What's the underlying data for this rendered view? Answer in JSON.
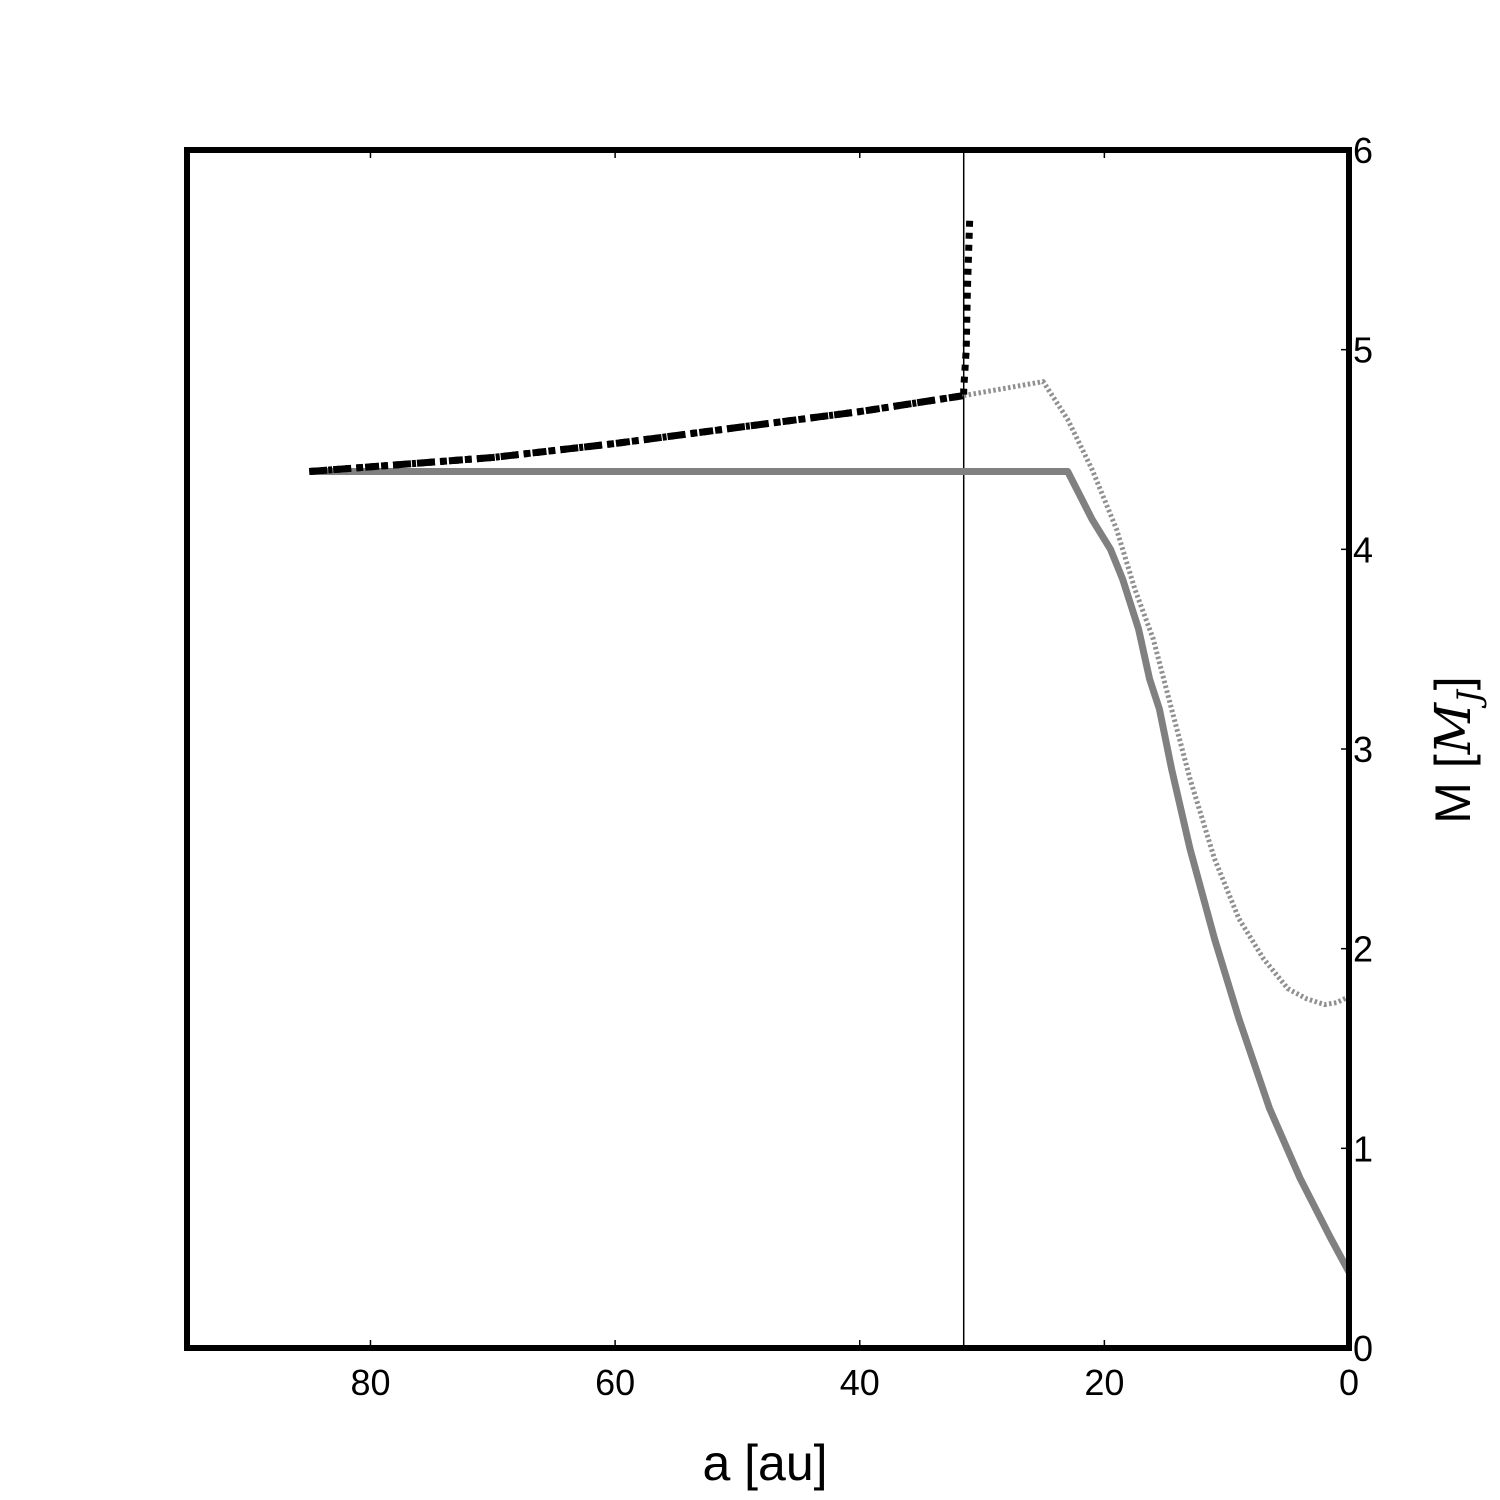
{
  "chart_data": {
    "type": "line",
    "title": "",
    "xlabel": "a [au]",
    "ylabel": "M [",
    "ylabel_symbol": "M",
    "ylabel_subscript": "J",
    "ylabel_close": "]",
    "xlim": [
      95,
      0
    ],
    "ylim": [
      0,
      6
    ],
    "x_ticks": [
      80,
      60,
      40,
      20,
      0
    ],
    "x_tick_labels": [
      "80",
      "60",
      "40",
      "20",
      "0"
    ],
    "y_ticks": [
      0,
      1,
      2,
      3,
      4,
      5,
      6
    ],
    "y_tick_labels": [
      "0",
      "1",
      "2",
      "3",
      "4",
      "5",
      "6"
    ],
    "y_axis_side": "right",
    "grid": false,
    "vline_x": 31.5,
    "series": [
      {
        "style": "solid",
        "color": "#808080",
        "points": [
          [
            85,
            4.39
          ],
          [
            23,
            4.39
          ],
          [
            22,
            4.27
          ],
          [
            21,
            4.15
          ],
          [
            19.5,
            4.0
          ],
          [
            18.5,
            3.85
          ],
          [
            17.2,
            3.6
          ],
          [
            16.3,
            3.35
          ],
          [
            15.5,
            3.2
          ],
          [
            14.5,
            2.9
          ],
          [
            13,
            2.5
          ],
          [
            11,
            2.05
          ],
          [
            9,
            1.65
          ],
          [
            6.5,
            1.2
          ],
          [
            4,
            0.85
          ],
          [
            1.5,
            0.55
          ],
          [
            0,
            0.38
          ]
        ]
      },
      {
        "style": "dotted",
        "color": "#909090",
        "points": [
          [
            31.5,
            4.77
          ],
          [
            25,
            4.84
          ],
          [
            23,
            4.65
          ],
          [
            21,
            4.4
          ],
          [
            19,
            4.1
          ],
          [
            17.5,
            3.8
          ],
          [
            16,
            3.55
          ],
          [
            14.5,
            3.2
          ],
          [
            13,
            2.85
          ],
          [
            11,
            2.45
          ],
          [
            9,
            2.15
          ],
          [
            7,
            1.95
          ],
          [
            5,
            1.8
          ],
          [
            3.5,
            1.75
          ],
          [
            2,
            1.72
          ],
          [
            1,
            1.73
          ],
          [
            0,
            1.76
          ]
        ]
      },
      {
        "style": "dashdot",
        "color": "#000000",
        "points": [
          [
            85,
            4.39
          ],
          [
            70,
            4.46
          ],
          [
            60,
            4.53
          ],
          [
            50,
            4.61
          ],
          [
            40,
            4.69
          ],
          [
            31.5,
            4.77
          ]
        ]
      },
      {
        "style": "thick-dotted",
        "color": "#000000",
        "points": [
          [
            85,
            4.39
          ],
          [
            70,
            4.46
          ],
          [
            60,
            4.53
          ],
          [
            50,
            4.61
          ],
          [
            40,
            4.69
          ],
          [
            31.5,
            4.77
          ],
          [
            31.5,
            4.8
          ],
          [
            31.3,
            5.0
          ],
          [
            31.2,
            5.3
          ],
          [
            31,
            5.67
          ]
        ]
      }
    ]
  }
}
